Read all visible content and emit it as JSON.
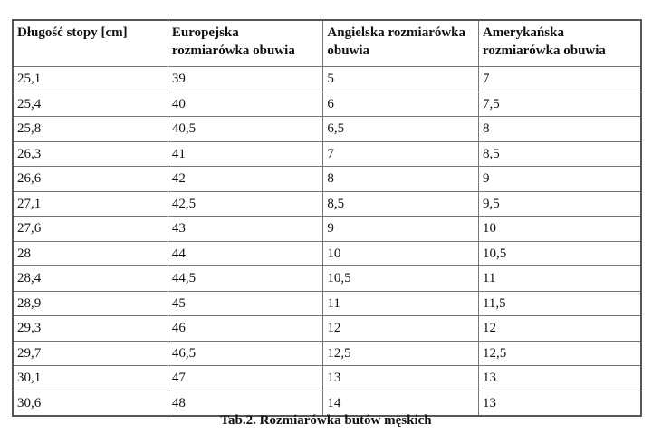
{
  "table": {
    "headers": [
      "Długość stopy [cm]",
      "Europejska rozmiarówka obuwia",
      "Angielska rozmiarówka obuwia",
      "Amerykańska rozmiarówka obuwia"
    ],
    "rows": [
      [
        "25,1",
        "39",
        "5",
        "7"
      ],
      [
        "25,4",
        "40",
        "6",
        "7,5"
      ],
      [
        "25,8",
        "40,5",
        "6,5",
        "8"
      ],
      [
        "26,3",
        "41",
        "7",
        "8,5"
      ],
      [
        "26,6",
        "42",
        "8",
        "9"
      ],
      [
        "27,1",
        "42,5",
        "8,5",
        "9,5"
      ],
      [
        "27,6",
        "43",
        "9",
        "10"
      ],
      [
        "28",
        "44",
        "10",
        "10,5"
      ],
      [
        "28,4",
        "44,5",
        "10,5",
        "11"
      ],
      [
        "28,9",
        "45",
        "11",
        "11,5"
      ],
      [
        "29,3",
        "46",
        "12",
        "12"
      ],
      [
        "29,7",
        "46,5",
        "12,5",
        "12,5"
      ],
      [
        "30,1",
        "47",
        "13",
        "13"
      ],
      [
        "30,6",
        "48",
        "14",
        "13"
      ]
    ]
  },
  "caption": "Tab.2. Rozmiarówka butów męskich"
}
